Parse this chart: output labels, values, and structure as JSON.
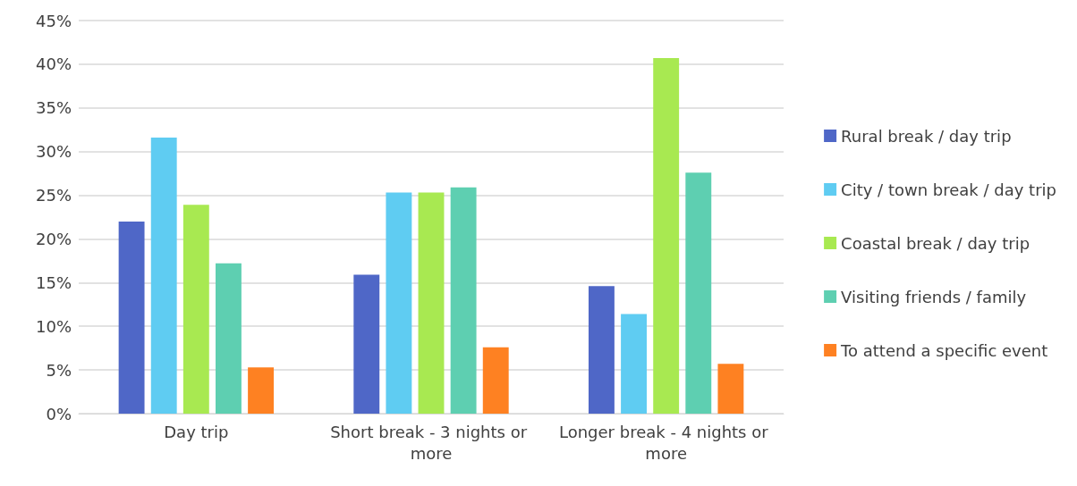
{
  "chart_data": {
    "type": "bar",
    "categories": [
      "Day trip",
      "Short break - 3 nights or more",
      "Longer break - 4 nights or more"
    ],
    "series": [
      {
        "name": "Rural break / day trip",
        "color": "#4f67c7",
        "values": [
          22.0,
          15.9,
          14.6
        ]
      },
      {
        "name": "City / town break / day trip",
        "color": "#5fccf2",
        "values": [
          31.6,
          25.3,
          11.4
        ]
      },
      {
        "name": "Coastal break / day trip",
        "color": "#a8e951",
        "values": [
          23.9,
          25.3,
          40.7
        ]
      },
      {
        "name": "Visiting friends / family",
        "color": "#5ecfb1",
        "values": [
          17.2,
          25.9,
          27.6
        ]
      },
      {
        "name": "To attend a specific event",
        "color": "#fe8122",
        "values": [
          5.3,
          7.6,
          5.7
        ]
      }
    ],
    "ylim": [
      0,
      45
    ],
    "yticks": [
      {
        "value": 0,
        "label": "0%"
      },
      {
        "value": 5,
        "label": "5%"
      },
      {
        "value": 10,
        "label": "10%"
      },
      {
        "value": 15,
        "label": "15%"
      },
      {
        "value": 20,
        "label": "20%"
      },
      {
        "value": 25,
        "label": "25%"
      },
      {
        "value": 30,
        "label": "30%"
      },
      {
        "value": 35,
        "label": "35%"
      },
      {
        "value": 40,
        "label": "40%"
      },
      {
        "value": 45,
        "label": "45%"
      }
    ],
    "grid": "y",
    "legend": "right"
  }
}
